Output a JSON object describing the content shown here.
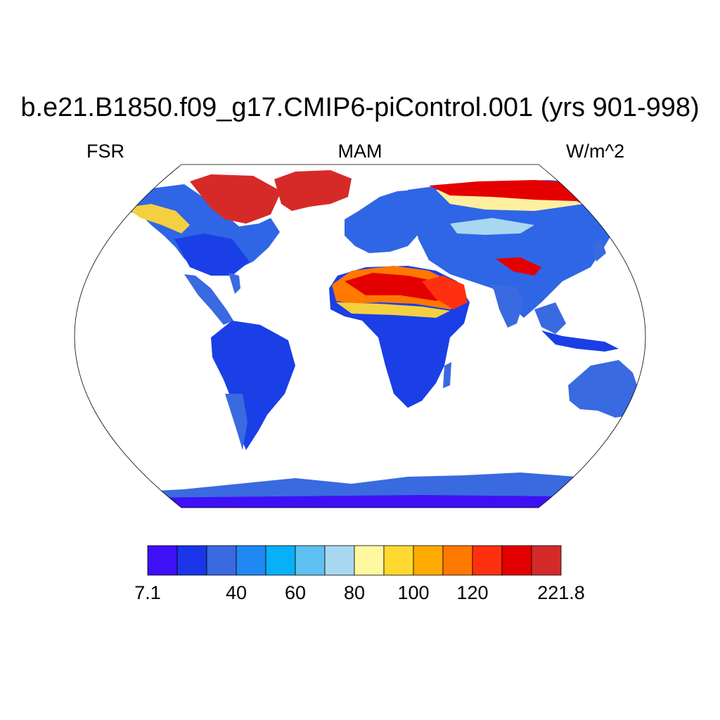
{
  "title": "b.e21.B1850.f09_g17.CMIP6-piControl.001 (yrs 901-998)",
  "left_label": "FSR",
  "center_label": "MAM",
  "right_label": "W/m^2",
  "colorbar": {
    "colors": [
      "#3e10f6",
      "#1a36e8",
      "#3a6ae0",
      "#2088f4",
      "#08b0f8",
      "#5ec0f0",
      "#a8d8f0",
      "#fff8a0",
      "#ffd830",
      "#ffaa00",
      "#ff7800",
      "#ff3010",
      "#e40000",
      "#d42a2a"
    ],
    "tick_labels": [
      {
        "label": "7.1",
        "boundary": 0
      },
      {
        "label": "40",
        "boundary": 3
      },
      {
        "label": "60",
        "boundary": 5
      },
      {
        "label": "80",
        "boundary": 7
      },
      {
        "label": "100",
        "boundary": 9
      },
      {
        "label": "120",
        "boundary": 11
      },
      {
        "label": "221.8",
        "boundary": 14
      }
    ]
  }
}
